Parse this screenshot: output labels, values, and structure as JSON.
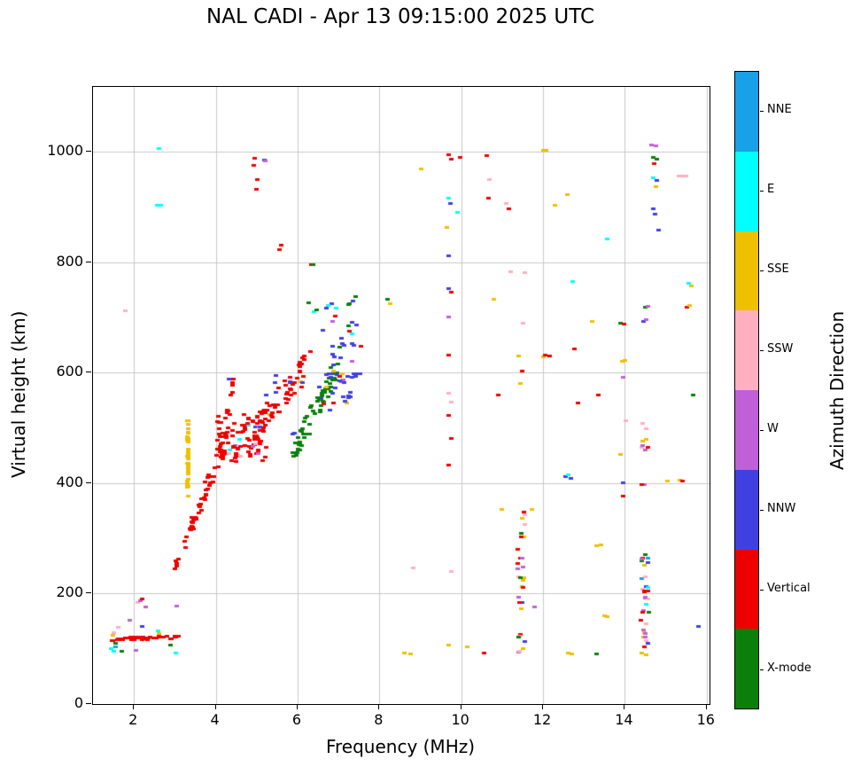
{
  "title": "NAL CADI - Apr 13 09:15:00 2025 UTC",
  "chart_data": {
    "type": "scatter",
    "title": "NAL CADI - Apr 13 09:15:00 2025 UTC",
    "xlabel": "Frequency (MHz)",
    "ylabel": "Virtual height (km)",
    "xlim": [
      1.0,
      16.07
    ],
    "ylim": [
      0,
      1117
    ],
    "xticks": [
      2,
      4,
      6,
      8,
      10,
      12,
      14,
      16
    ],
    "yticks": [
      0,
      200,
      400,
      600,
      800,
      1000
    ],
    "grid": true,
    "grid_color": "#c8c8c8",
    "point_size": [
      5,
      3
    ],
    "palette": {
      "names": [
        "X-mode",
        "Vertical",
        "NNW",
        "W",
        "SSW",
        "SSE",
        "E",
        "NNE"
      ],
      "colors": [
        "#0a800a",
        "#ee0000",
        "#4040e0",
        "#c060d8",
        "#ffb0c0",
        "#edc000",
        "#00ffff",
        "#18a0e8"
      ]
    },
    "colorbar": {
      "label": "Azimuth Direction",
      "segments": [
        {
          "label": "NNE",
          "color": "#18a0e8"
        },
        {
          "label": "E",
          "color": "#00ffff"
        },
        {
          "label": "SSE",
          "color": "#edc000"
        },
        {
          "label": "SSW",
          "color": "#ffb0c0"
        },
        {
          "label": "W",
          "color": "#c060d8"
        },
        {
          "label": "NNW",
          "color": "#4040e0"
        },
        {
          "label": "Vertical",
          "color": "#ee0000"
        },
        {
          "label": "X-mode",
          "color": "#0a800a"
        }
      ]
    },
    "points": [
      [
        1.45,
        101,
        6
      ],
      [
        1.5,
        96,
        6
      ],
      [
        1.55,
        104,
        7
      ],
      [
        1.48,
        125,
        5
      ],
      [
        1.5,
        129,
        4
      ],
      [
        1.56,
        110,
        0
      ],
      [
        1.62,
        139,
        4
      ],
      [
        1.7,
        95,
        0
      ],
      [
        1.9,
        151,
        3
      ],
      [
        2.05,
        97,
        3
      ],
      [
        2.1,
        183,
        4
      ],
      [
        2.15,
        187,
        3
      ],
      [
        2.2,
        190,
        1
      ],
      [
        2.2,
        141,
        2
      ],
      [
        2.28,
        176,
        3
      ],
      [
        2.6,
        132,
        6
      ],
      [
        2.62,
        128,
        5
      ],
      [
        2.9,
        107,
        0
      ],
      [
        3.02,
        92,
        6
      ],
      [
        3.05,
        178,
        3
      ],
      [
        2.58,
        903,
        6
      ],
      [
        2.62,
        1005,
        6
      ],
      [
        2.66,
        902,
        6
      ],
      [
        1.78,
        712,
        4
      ],
      [
        4.92,
        975,
        1
      ],
      [
        4.95,
        988,
        1
      ],
      [
        5.0,
        932,
        1
      ],
      [
        5.02,
        950,
        1
      ],
      [
        5.18,
        985,
        2
      ],
      [
        5.22,
        983,
        3
      ],
      [
        5.6,
        830,
        1
      ],
      [
        5.55,
        822,
        1
      ],
      [
        6.33,
        796,
        1
      ],
      [
        6.38,
        796,
        0
      ],
      [
        4.33,
        588,
        2
      ],
      [
        4.47,
        468,
        3
      ],
      [
        4.55,
        452,
        4
      ],
      [
        4.6,
        448,
        4
      ],
      [
        4.8,
        505,
        6
      ],
      [
        5.32,
        524,
        5
      ],
      [
        6.08,
        584,
        5
      ],
      [
        7.35,
        730,
        2
      ],
      [
        7.42,
        738,
        0
      ],
      [
        8.2,
        732,
        0
      ],
      [
        8.27,
        724,
        5
      ],
      [
        8.62,
        92,
        5
      ],
      [
        8.77,
        90,
        5
      ],
      [
        8.82,
        246,
        4
      ],
      [
        9.02,
        968,
        5
      ],
      [
        9.7,
        995,
        1
      ],
      [
        9.76,
        987,
        1
      ],
      [
        9.7,
        916,
        6
      ],
      [
        9.74,
        906,
        2
      ],
      [
        9.66,
        862,
        5
      ],
      [
        9.7,
        812,
        2
      ],
      [
        9.7,
        752,
        2
      ],
      [
        9.76,
        745,
        1
      ],
      [
        9.7,
        700,
        3
      ],
      [
        9.7,
        632,
        1
      ],
      [
        9.7,
        562,
        4
      ],
      [
        9.75,
        547,
        4
      ],
      [
        9.7,
        522,
        1
      ],
      [
        9.75,
        480,
        1
      ],
      [
        9.7,
        432,
        1
      ],
      [
        9.76,
        240,
        4
      ],
      [
        9.7,
        106,
        5
      ],
      [
        9.9,
        890,
        6
      ],
      [
        9.98,
        990,
        1
      ],
      [
        10.15,
        104,
        5
      ],
      [
        10.55,
        92,
        1
      ],
      [
        10.62,
        992,
        1
      ],
      [
        10.66,
        915,
        1
      ],
      [
        10.7,
        950,
        4
      ],
      [
        10.8,
        732,
        5
      ],
      [
        10.9,
        560,
        1
      ],
      [
        11.0,
        352,
        5
      ],
      [
        11.1,
        906,
        4
      ],
      [
        11.16,
        896,
        1
      ],
      [
        11.2,
        782,
        4
      ],
      [
        11.4,
        630,
        5
      ],
      [
        11.45,
        580,
        5
      ],
      [
        11.5,
        602,
        1
      ],
      [
        11.52,
        690,
        4
      ],
      [
        11.56,
        780,
        4
      ],
      [
        11.72,
        352,
        5
      ],
      [
        11.8,
        176,
        3
      ],
      [
        12.0,
        1002,
        5
      ],
      [
        12.08,
        1002,
        5
      ],
      [
        12.0,
        628,
        5
      ],
      [
        12.06,
        632,
        1
      ],
      [
        12.16,
        630,
        1
      ],
      [
        12.3,
        902,
        5
      ],
      [
        12.56,
        412,
        2
      ],
      [
        12.6,
        922,
        5
      ],
      [
        12.62,
        415,
        6
      ],
      [
        12.62,
        92,
        5
      ],
      [
        12.68,
        408,
        2
      ],
      [
        12.7,
        90,
        5
      ],
      [
        12.72,
        765,
        6
      ],
      [
        12.76,
        642,
        1
      ],
      [
        12.86,
        545,
        1
      ],
      [
        13.2,
        692,
        5
      ],
      [
        13.32,
        286,
        5
      ],
      [
        13.32,
        90,
        0
      ],
      [
        13.36,
        560,
        1
      ],
      [
        13.42,
        288,
        5
      ],
      [
        13.5,
        160,
        5
      ],
      [
        13.56,
        158,
        5
      ],
      [
        13.56,
        842,
        6
      ],
      [
        13.9,
        690,
        0
      ],
      [
        13.9,
        452,
        5
      ],
      [
        13.93,
        620,
        5
      ],
      [
        13.95,
        376,
        1
      ],
      [
        13.96,
        592,
        3
      ],
      [
        13.96,
        400,
        2
      ],
      [
        13.97,
        688,
        1
      ],
      [
        14.0,
        622,
        5
      ],
      [
        14.02,
        512,
        4
      ],
      [
        14.45,
        692,
        2
      ],
      [
        14.5,
        718,
        0
      ],
      [
        14.52,
        696,
        3
      ],
      [
        14.56,
        720,
        3
      ],
      [
        14.66,
        1012,
        3
      ],
      [
        14.76,
        1010,
        3
      ],
      [
        14.7,
        990,
        0
      ],
      [
        14.78,
        986,
        0
      ],
      [
        14.72,
        978,
        1
      ],
      [
        14.7,
        952,
        6
      ],
      [
        14.78,
        948,
        2
      ],
      [
        14.76,
        936,
        5
      ],
      [
        14.7,
        896,
        2
      ],
      [
        14.74,
        886,
        2
      ],
      [
        14.82,
        858,
        2
      ],
      [
        15.05,
        403,
        5
      ],
      [
        15.32,
        956,
        4
      ],
      [
        15.35,
        406,
        5
      ],
      [
        15.42,
        403,
        1
      ],
      [
        15.44,
        956,
        4
      ],
      [
        15.5,
        955,
        4
      ],
      [
        15.52,
        718,
        1
      ],
      [
        15.56,
        762,
        6
      ],
      [
        15.58,
        722,
        5
      ],
      [
        15.62,
        756,
        5
      ],
      [
        15.66,
        560,
        0
      ],
      [
        15.8,
        140,
        2
      ]
    ],
    "clusters": [
      {
        "type": "line",
        "f0": 1.45,
        "h0": 117,
        "f1": 3.15,
        "h1": 121,
        "jf": 0.02,
        "jh": 3,
        "n": 42,
        "c": 1
      },
      {
        "type": "line",
        "f0": 3.0,
        "h0": 248,
        "f1": 4.22,
        "h1": 458,
        "jf": 0.015,
        "jh": 9,
        "n": 48,
        "c": 1
      },
      {
        "type": "line",
        "f0": 3.12,
        "h0": 272,
        "f1": 4.2,
        "h1": 485,
        "jf": 0.015,
        "jh": 6,
        "n": 14,
        "c": 1
      },
      {
        "type": "line",
        "f0": 3.32,
        "h0": 372,
        "f1": 3.32,
        "h1": 518,
        "jf": 0.008,
        "jh": 3,
        "n": 40,
        "c": 5
      },
      {
        "type": "box",
        "f0": 4.0,
        "f1": 5.25,
        "h0": 436,
        "h1": 524,
        "n": 85,
        "c": 1
      },
      {
        "type": "box",
        "f0": 4.15,
        "f1": 5.1,
        "h0": 445,
        "h1": 515,
        "n": 10,
        "c": [
          3,
          4,
          2,
          6,
          3,
          4
        ]
      },
      {
        "type": "line",
        "f0": 4.25,
        "h0": 522,
        "f1": 4.45,
        "h1": 588,
        "jf": 0.03,
        "jh": 10,
        "n": 10,
        "c": 1
      },
      {
        "type": "line",
        "f0": 4.95,
        "h0": 492,
        "f1": 6.2,
        "h1": 612,
        "jf": 0.03,
        "jh": 26,
        "n": 52,
        "c": 1
      },
      {
        "type": "box",
        "f0": 5.2,
        "f1": 6.2,
        "h0": 480,
        "h1": 615,
        "n": 8,
        "c": 2
      },
      {
        "type": "line",
        "f0": 5.88,
        "h0": 452,
        "f1": 7.0,
        "h1": 612,
        "jf": 0.03,
        "jh": 22,
        "n": 62,
        "c": 0
      },
      {
        "type": "box",
        "f0": 6.25,
        "f1": 7.55,
        "h0": 528,
        "h1": 728,
        "n": 46,
        "c": [
          2,
          2,
          2,
          2,
          0,
          1,
          6,
          3,
          5,
          2,
          0,
          1
        ]
      },
      {
        "type": "box",
        "f0": 6.8,
        "f1": 7.5,
        "h0": 545,
        "h1": 665,
        "n": 18,
        "c": 2
      },
      {
        "type": "box",
        "f0": 11.38,
        "f1": 11.56,
        "h0": 92,
        "h1": 350,
        "n": 30,
        "c": [
          5,
          1,
          0,
          3,
          4,
          1,
          5,
          2,
          3,
          4,
          5,
          1
        ]
      },
      {
        "type": "box",
        "f0": 14.38,
        "f1": 14.58,
        "h0": 88,
        "h1": 272,
        "n": 34,
        "c": [
          3,
          1,
          5,
          0,
          2,
          4,
          6,
          1,
          3,
          5,
          7,
          1,
          3,
          4
        ]
      },
      {
        "type": "box",
        "f0": 14.38,
        "f1": 14.6,
        "h0": 395,
        "h1": 515,
        "n": 10,
        "c": [
          4,
          3,
          5,
          1
        ]
      }
    ]
  }
}
